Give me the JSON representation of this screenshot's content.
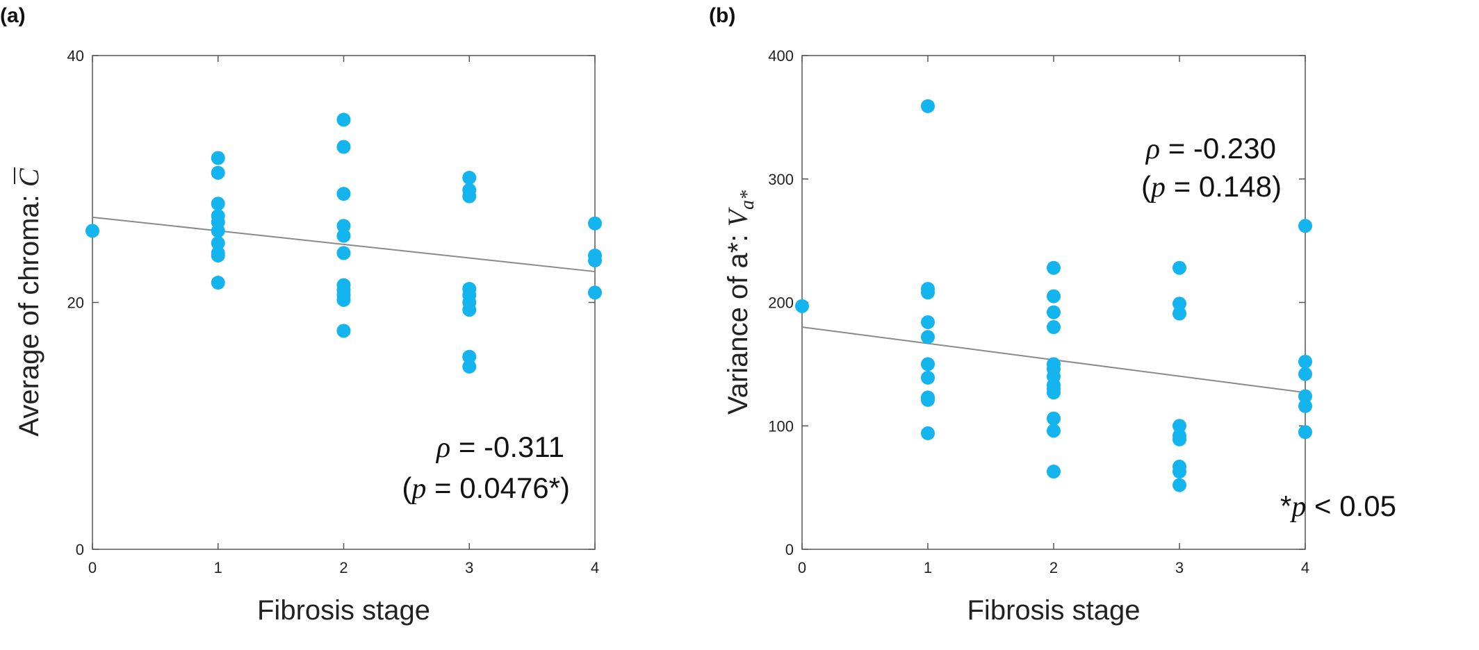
{
  "chart_data": [
    {
      "panel_label": "(a)",
      "type": "scatter",
      "xlabel": "Fibrosis stage",
      "ylabel": "Average of chroma: ",
      "ylabel_symbol": "C",
      "xlim": [
        0,
        4
      ],
      "ylim": [
        0,
        40
      ],
      "xticks": [
        "0",
        "1",
        "2",
        "3",
        "4"
      ],
      "yticks": [
        "0",
        "20",
        "40"
      ],
      "grid": false,
      "point_color": "#14b4ee",
      "trend_color": "#8a8a8a",
      "trendline": [
        [
          0,
          26.9
        ],
        [
          4,
          22.5
        ]
      ],
      "annotation": {
        "rho_symbol": "ρ",
        "rho_text": " = -0.311",
        "p_prefix": "(",
        "p_symbol": "p",
        "p_text": " = 0.0476*)"
      },
      "points": [
        [
          0,
          25.8
        ],
        [
          1,
          31.7
        ],
        [
          1,
          30.5
        ],
        [
          1,
          28.0
        ],
        [
          1,
          27.0
        ],
        [
          1,
          26.5
        ],
        [
          1,
          25.8
        ],
        [
          1,
          24.8
        ],
        [
          1,
          24.0
        ],
        [
          1,
          23.8
        ],
        [
          1,
          21.6
        ],
        [
          2,
          34.8
        ],
        [
          2,
          32.6
        ],
        [
          2,
          28.8
        ],
        [
          2,
          26.2
        ],
        [
          2,
          25.4
        ],
        [
          2,
          24.0
        ],
        [
          2,
          21.4
        ],
        [
          2,
          21.0
        ],
        [
          2,
          20.6
        ],
        [
          2,
          20.2
        ],
        [
          2,
          17.7
        ],
        [
          3,
          30.1
        ],
        [
          3,
          29.1
        ],
        [
          3,
          28.6
        ],
        [
          3,
          21.1
        ],
        [
          3,
          20.6
        ],
        [
          3,
          20.0
        ],
        [
          3,
          19.4
        ],
        [
          3,
          15.6
        ],
        [
          3,
          14.8
        ],
        [
          4,
          26.4
        ],
        [
          4,
          23.8
        ],
        [
          4,
          23.4
        ],
        [
          4,
          20.8
        ]
      ]
    },
    {
      "panel_label": "(b)",
      "type": "scatter",
      "xlabel": "Fibrosis stage",
      "ylabel": "Variance of a*: ",
      "ylabel_symbol": "V",
      "ylabel_sub": "a*",
      "xlim": [
        0,
        4
      ],
      "ylim": [
        0,
        400
      ],
      "xticks": [
        "0",
        "1",
        "2",
        "3",
        "4"
      ],
      "yticks": [
        "0",
        "100",
        "200",
        "300",
        "400"
      ],
      "grid": false,
      "point_color": "#14b4ee",
      "trend_color": "#8a8a8a",
      "trendline": [
        [
          0,
          180
        ],
        [
          4,
          127
        ]
      ],
      "annotation": {
        "rho_symbol": "ρ",
        "rho_text": " = -0.230",
        "p_prefix": "(",
        "p_symbol": "p",
        "p_text": " = 0.148)"
      },
      "points": [
        [
          0,
          197
        ],
        [
          1,
          359
        ],
        [
          1,
          211
        ],
        [
          1,
          208
        ],
        [
          1,
          184
        ],
        [
          1,
          172
        ],
        [
          1,
          150
        ],
        [
          1,
          139
        ],
        [
          1,
          123
        ],
        [
          1,
          121
        ],
        [
          1,
          94
        ],
        [
          2,
          228
        ],
        [
          2,
          205
        ],
        [
          2,
          192
        ],
        [
          2,
          180
        ],
        [
          2,
          150
        ],
        [
          2,
          146
        ],
        [
          2,
          140
        ],
        [
          2,
          133
        ],
        [
          2,
          130
        ],
        [
          2,
          127
        ],
        [
          2,
          106
        ],
        [
          2,
          96
        ],
        [
          2,
          63
        ],
        [
          3,
          228
        ],
        [
          3,
          199
        ],
        [
          3,
          191
        ],
        [
          3,
          100
        ],
        [
          3,
          92
        ],
        [
          3,
          89
        ],
        [
          3,
          67
        ],
        [
          3,
          63
        ],
        [
          3,
          52
        ],
        [
          4,
          262
        ],
        [
          4,
          152
        ],
        [
          4,
          142
        ],
        [
          4,
          124
        ],
        [
          4,
          116
        ],
        [
          4,
          95
        ]
      ]
    }
  ],
  "footnote": {
    "star": "*",
    "p_symbol": "p",
    "text": " < 0.05"
  }
}
